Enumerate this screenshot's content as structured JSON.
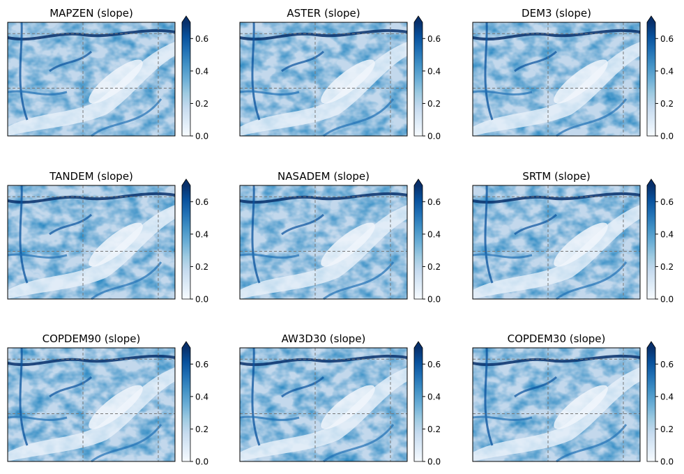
{
  "chart_data": {
    "type": "heatmap",
    "layout": "3x3 grid",
    "colormap": "Blues",
    "colorbar": {
      "vmin": 0.0,
      "vmax": 0.7,
      "extend": "max",
      "ticks": [
        0.0,
        0.2,
        0.4,
        0.6
      ],
      "tick_labels": [
        "0.0",
        "0.2",
        "0.4",
        "0.6"
      ]
    },
    "gridlines": "dashed gray",
    "panels": [
      {
        "title": "MAPZEN (slope)"
      },
      {
        "title": "ASTER (slope)"
      },
      {
        "title": "DEM3 (slope)"
      },
      {
        "title": "TANDEM (slope)"
      },
      {
        "title": "NASADEM (slope)"
      },
      {
        "title": "SRTM (slope)"
      },
      {
        "title": "COPDEM90 (slope)"
      },
      {
        "title": "AW3D30 (slope)"
      },
      {
        "title": "COPDEM30 (slope)"
      }
    ]
  }
}
